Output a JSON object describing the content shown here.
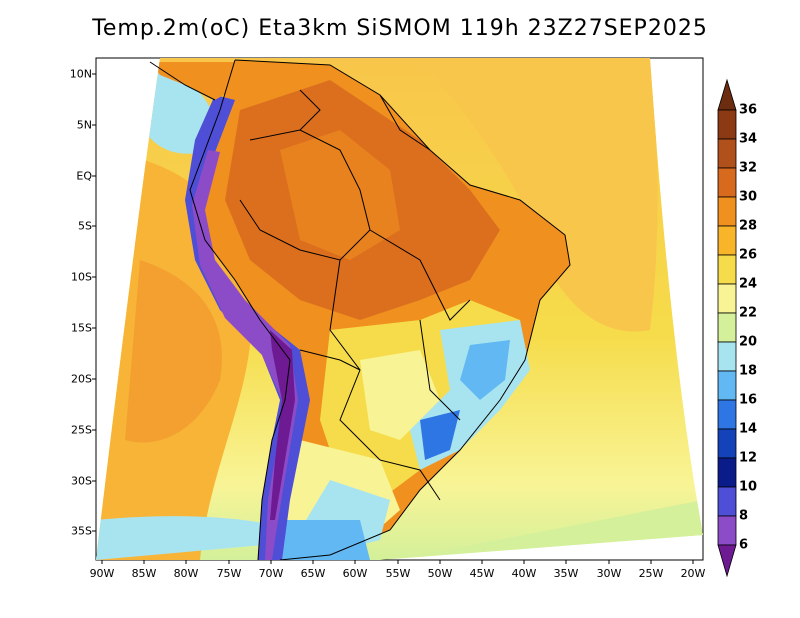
{
  "title": "Temp.2m(oC) Eta3km SiSMOM 119h 23Z27SEP2025",
  "map": {
    "lat_labels": [
      "10N",
      "5N",
      "EQ",
      "5S",
      "10S",
      "15S",
      "20S",
      "25S",
      "30S",
      "35S"
    ],
    "lon_labels": [
      "90W",
      "85W",
      "80W",
      "75W",
      "70W",
      "65W",
      "60W",
      "55W",
      "50W",
      "45W",
      "40W",
      "35W",
      "30W",
      "25W",
      "20W"
    ],
    "variable": "2 m air temperature",
    "units": "oC"
  },
  "colorbar": {
    "labels": [
      "36",
      "34",
      "32",
      "30",
      "28",
      "26",
      "24",
      "22",
      "20",
      "18",
      "16",
      "14",
      "12",
      "10",
      "8",
      "6"
    ],
    "colors": [
      "#6b2c10",
      "#8b3a14",
      "#b0501a",
      "#d86a1e",
      "#f0901e",
      "#f8b52a",
      "#f6dc4a",
      "#f8f496",
      "#d4f09a",
      "#a8e4f0",
      "#62b8f2",
      "#2e76e4",
      "#1442b8",
      "#0a1c8a",
      "#4e4ed6",
      "#8c4cc8",
      "#6e1a92"
    ]
  }
}
